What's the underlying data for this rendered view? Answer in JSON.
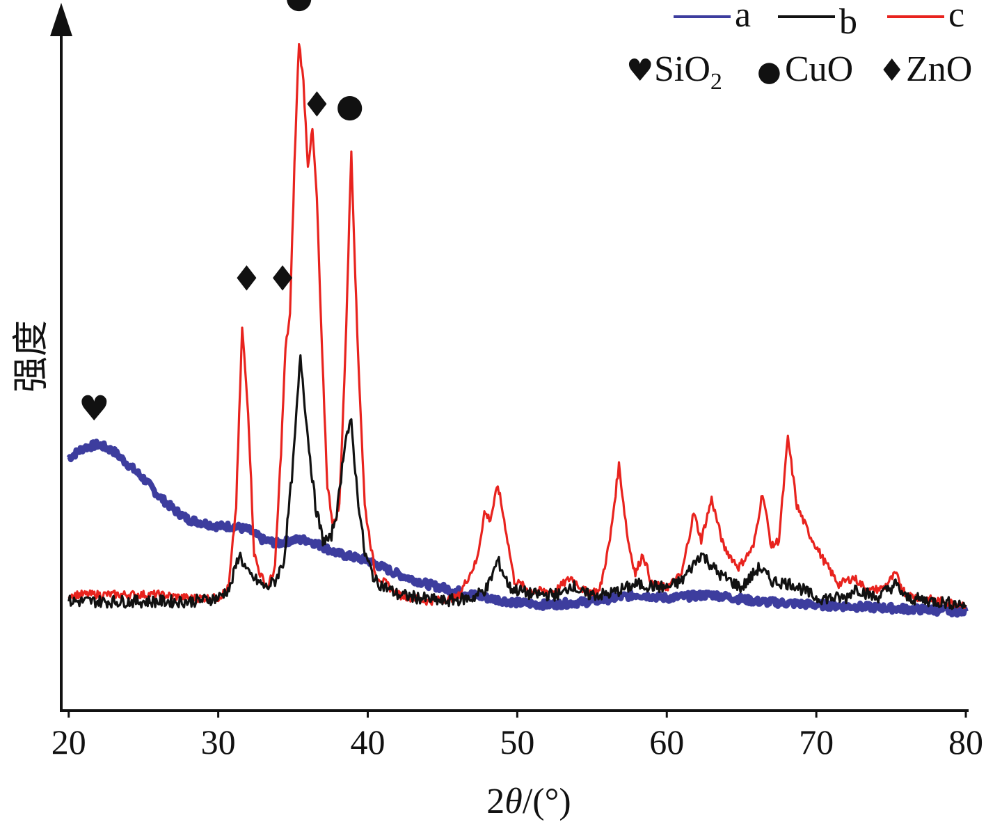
{
  "chart_data": {
    "type": "line",
    "xlabel_prefix": "2",
    "xlabel_theta": "θ",
    "xlabel_suffix": "/(°)",
    "ylabel": "强度",
    "xlim": [
      19.5,
      80
    ],
    "ylim": [
      0,
      100
    ],
    "x_ticks": [
      "20",
      "30",
      "40",
      "50",
      "60",
      "70",
      "80"
    ],
    "grid": false,
    "legend_position": "top-right",
    "series": [
      {
        "name": "a",
        "color": "#3d3d9e",
        "x": [
          20,
          21,
          22,
          23,
          24,
          25,
          26,
          27,
          28,
          29,
          30,
          31,
          32,
          33,
          34,
          35,
          36,
          37,
          38,
          39,
          40,
          42,
          44,
          46,
          48,
          50,
          52,
          55,
          58,
          60,
          63,
          66,
          70,
          75,
          80
        ],
        "y": [
          37,
          38.5,
          39,
          38,
          36,
          34,
          31.5,
          29.5,
          28,
          27.5,
          27,
          27,
          26.5,
          25,
          24.5,
          25,
          25,
          24,
          23,
          22.5,
          22,
          20,
          18.5,
          17.5,
          16.5,
          15.8,
          15.5,
          16,
          17,
          16.5,
          17,
          16,
          15.5,
          15,
          14.5
        ]
      },
      {
        "name": "b",
        "color": "#111111",
        "x": [
          20,
          22,
          24,
          26,
          28,
          29,
          30,
          30.8,
          31.4,
          32,
          32.6,
          33.2,
          33.8,
          34.4,
          35,
          35.5,
          36,
          36.5,
          37,
          37.5,
          38,
          38.5,
          38.9,
          39.3,
          39.8,
          40.5,
          42,
          45,
          47,
          48,
          48.7,
          49.5,
          51,
          53,
          53.6,
          54.5,
          56,
          58,
          60,
          61,
          62.3,
          63.5,
          65,
          66.2,
          67,
          68.5,
          70,
          72,
          72.6,
          74,
          75.3,
          76,
          78,
          80
        ],
        "y": [
          16,
          16,
          16,
          16,
          16,
          16.2,
          16.5,
          18,
          23,
          20,
          19,
          18,
          19,
          22,
          36,
          52,
          40,
          30,
          25,
          25,
          30,
          40,
          42,
          32,
          23,
          19,
          17,
          16,
          16.5,
          18,
          22,
          18,
          17,
          17,
          18.5,
          17,
          17,
          18.5,
          18,
          19,
          23,
          20,
          18,
          21,
          19,
          18.5,
          16.5,
          16.5,
          18,
          16.5,
          18.5,
          16.5,
          16,
          15.5
        ]
      },
      {
        "name": "c",
        "color": "#e8231e",
        "x": [
          20,
          22,
          24,
          26,
          28,
          30,
          30.7,
          31.2,
          31.6,
          32,
          32.4,
          32.8,
          33.3,
          33.8,
          34.2,
          34.5,
          34.8,
          35.1,
          35.4,
          35.7,
          36,
          36.3,
          36.6,
          36.9,
          37.3,
          37.7,
          38.1,
          38.5,
          38.9,
          39.3,
          39.8,
          40.5,
          42,
          44,
          46,
          47.3,
          47.8,
          48.2,
          48.7,
          49.2,
          49.8,
          51,
          52.5,
          53.6,
          54.5,
          55.5,
          56.2,
          56.8,
          57.4,
          57.9,
          58.4,
          59,
          60,
          61,
          61.8,
          62.3,
          63,
          63.8,
          64.8,
          65.8,
          66.4,
          67,
          67.5,
          68.1,
          68.7,
          69.5,
          70.5,
          71.5,
          72.5,
          73.5,
          74.5,
          75.3,
          76,
          77,
          78.5,
          80
        ],
        "y": [
          17,
          17,
          17,
          17,
          16.5,
          16.5,
          18,
          30,
          56,
          44,
          23,
          20,
          18,
          21,
          38,
          53,
          58,
          80,
          98,
          92,
          80,
          85,
          75,
          55,
          33,
          27,
          30,
          52,
          82,
          55,
          30,
          20,
          17,
          16,
          16.5,
          22,
          29,
          28,
          33,
          27,
          19,
          17.5,
          17.5,
          19.5,
          17.5,
          17.5,
          25,
          36,
          25,
          20,
          23,
          18.5,
          18,
          20,
          29,
          25,
          31,
          24,
          21,
          24,
          32,
          24,
          25,
          40,
          30,
          26,
          22,
          18.5,
          19.5,
          17.5,
          18,
          20,
          17,
          16.5,
          16,
          15.5
        ]
      }
    ],
    "annotations": [
      {
        "symbol": "♥",
        "x": 21.7,
        "y": 42.5,
        "phase": "SiO2"
      },
      {
        "symbol": "♦",
        "x": 31.9,
        "y": 61.5,
        "phase": "ZnO"
      },
      {
        "symbol": "♦",
        "x": 34.3,
        "y": 61.5,
        "phase": "ZnO"
      },
      {
        "symbol": "●",
        "x": 35.4,
        "y": 103,
        "phase": "CuO"
      },
      {
        "symbol": "♦",
        "x": 36.6,
        "y": 87,
        "phase": "ZnO"
      },
      {
        "symbol": "●",
        "x": 38.8,
        "y": 87,
        "phase": "CuO"
      }
    ],
    "legend_lines": [
      {
        "label": "a",
        "color": "#3d3d9e"
      },
      {
        "label": "b",
        "color": "#111111"
      },
      {
        "label": "c",
        "color": "#e8231e"
      }
    ],
    "legend_phases": [
      {
        "symbol": "♥",
        "label": "SiO",
        "sub": "2"
      },
      {
        "symbol": "●",
        "label": "CuO",
        "sub": ""
      },
      {
        "symbol": "♦",
        "label": "ZnO",
        "sub": ""
      }
    ]
  }
}
